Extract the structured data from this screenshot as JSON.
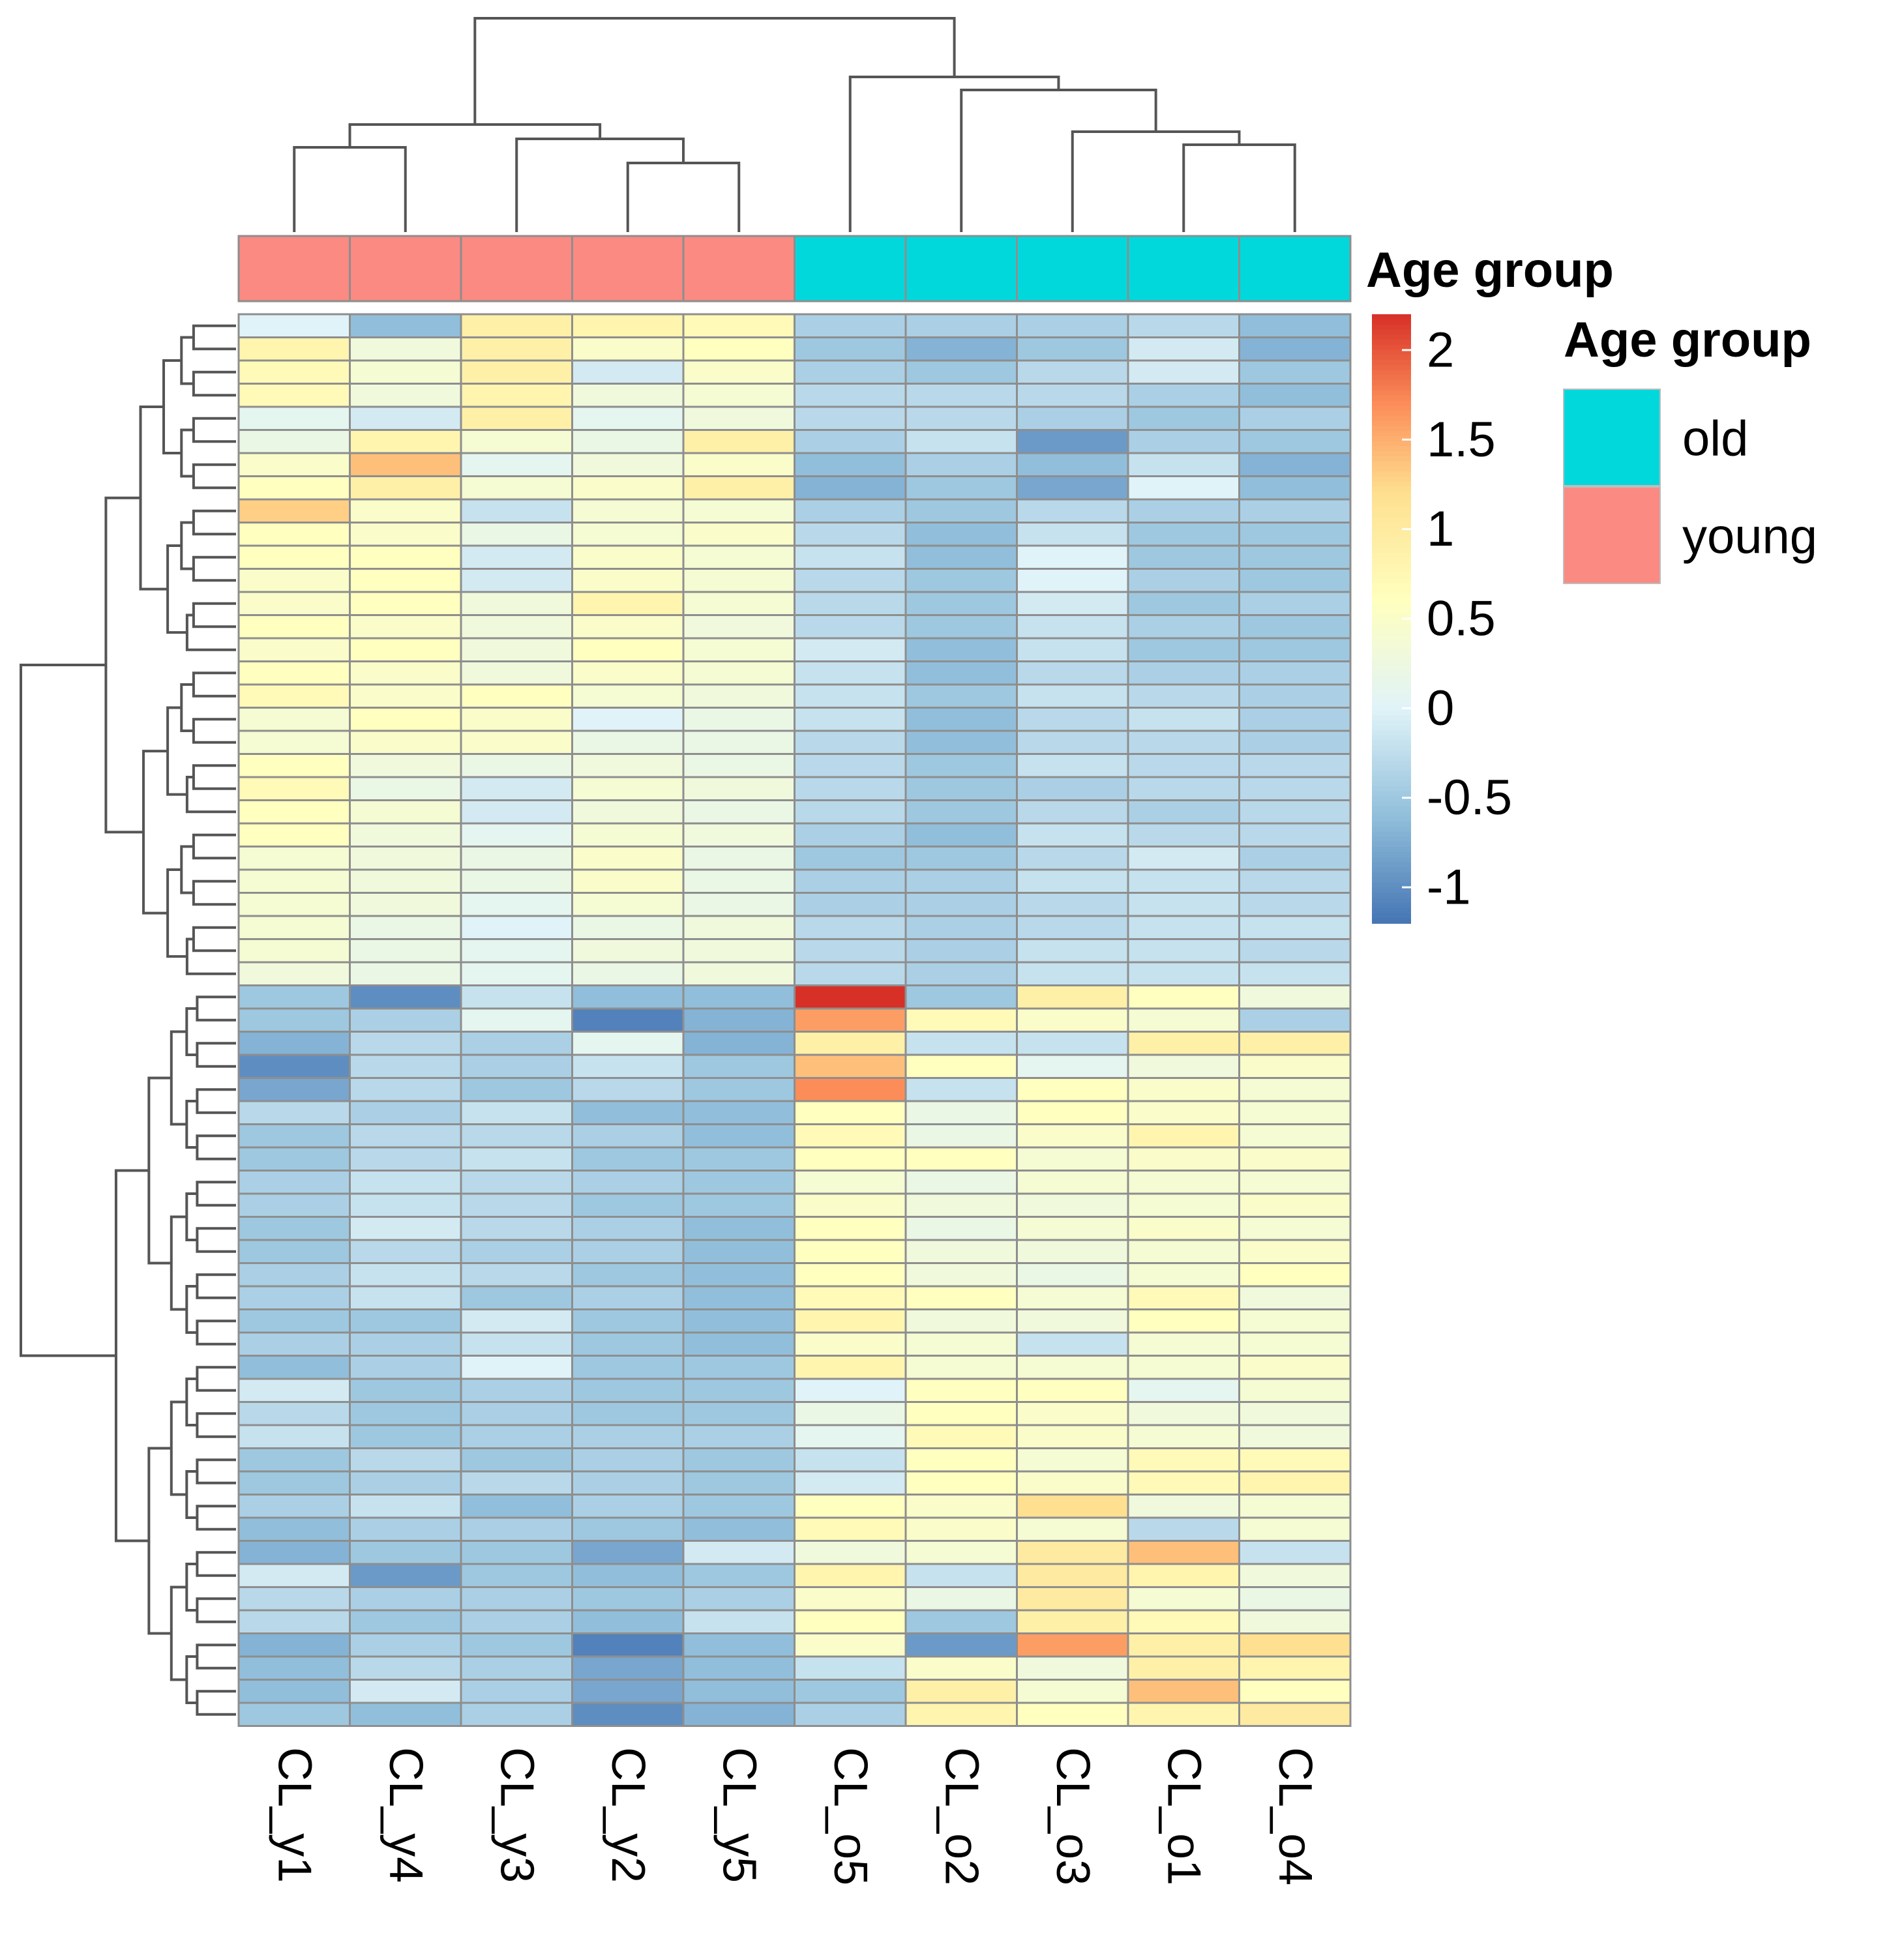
{
  "chart_data": {
    "type": "heatmap",
    "title": "",
    "columns": [
      "CL_y1",
      "CL_y4",
      "CL_y3",
      "CL_y2",
      "CL_y5",
      "CL_o5",
      "CL_o2",
      "CL_o3",
      "CL_o1",
      "CL_o4"
    ],
    "column_groups": [
      "young",
      "young",
      "young",
      "young",
      "young",
      "old",
      "old",
      "old",
      "old",
      "old"
    ],
    "annotation": {
      "title": "Age group",
      "levels": [
        {
          "name": "old",
          "color": "#00d8dc"
        },
        {
          "name": "young",
          "color": "#fa8a82"
        }
      ]
    },
    "legend": {
      "colorbar_ticks": [
        "2",
        "1.5",
        "1",
        "0.5",
        "0",
        "-0.5",
        "-1"
      ],
      "colorbar_range": [
        -1.2,
        2.2
      ],
      "annotation_title": "Age group"
    },
    "colorscale": [
      {
        "value": -1.2,
        "color": "#4575b4"
      },
      {
        "value": -0.6,
        "color": "#91bfdb"
      },
      {
        "value": 0.0,
        "color": "#e0f3f8"
      },
      {
        "value": 0.6,
        "color": "#ffffbf"
      },
      {
        "value": 1.2,
        "color": "#fee090"
      },
      {
        "value": 1.7,
        "color": "#fc8d59"
      },
      {
        "value": 2.2,
        "color": "#d73027"
      }
    ],
    "values": [
      [
        0.0,
        -0.6,
        0.9,
        0.8,
        0.7,
        -0.4,
        -0.4,
        -0.4,
        -0.3,
        -0.6
      ],
      [
        0.8,
        0.3,
        0.9,
        0.5,
        0.6,
        -0.5,
        -0.7,
        -0.5,
        -0.1,
        -0.7
      ],
      [
        0.7,
        0.4,
        0.9,
        -0.1,
        0.5,
        -0.4,
        -0.5,
        -0.3,
        -0.1,
        -0.5
      ],
      [
        0.7,
        0.3,
        0.8,
        0.3,
        0.4,
        -0.3,
        -0.3,
        -0.3,
        -0.4,
        -0.6
      ],
      [
        0.1,
        -0.1,
        0.9,
        0.1,
        0.3,
        -0.3,
        -0.3,
        -0.4,
        -0.5,
        -0.4
      ],
      [
        0.2,
        0.8,
        0.4,
        0.2,
        0.9,
        -0.4,
        -0.2,
        -0.9,
        -0.4,
        -0.5
      ],
      [
        0.5,
        1.4,
        0.1,
        0.3,
        0.5,
        -0.6,
        -0.4,
        -0.6,
        -0.2,
        -0.7
      ],
      [
        0.6,
        0.9,
        0.4,
        0.5,
        0.9,
        -0.7,
        -0.5,
        -0.8,
        0.0,
        -0.6
      ],
      [
        1.3,
        0.5,
        -0.2,
        0.4,
        0.4,
        -0.4,
        -0.5,
        -0.3,
        -0.4,
        -0.4
      ],
      [
        0.6,
        0.5,
        0.2,
        0.4,
        0.5,
        -0.3,
        -0.6,
        -0.2,
        -0.5,
        -0.5
      ],
      [
        0.6,
        0.6,
        -0.1,
        0.5,
        0.4,
        -0.2,
        -0.6,
        0.0,
        -0.5,
        -0.5
      ],
      [
        0.5,
        0.6,
        -0.1,
        0.5,
        0.4,
        -0.3,
        -0.5,
        0.0,
        -0.4,
        -0.5
      ],
      [
        0.5,
        0.6,
        0.3,
        0.8,
        0.4,
        -0.3,
        -0.5,
        -0.1,
        -0.5,
        -0.4
      ],
      [
        0.6,
        0.5,
        0.3,
        0.5,
        0.3,
        -0.3,
        -0.5,
        -0.2,
        -0.4,
        -0.5
      ],
      [
        0.5,
        0.6,
        0.3,
        0.6,
        0.4,
        -0.1,
        -0.6,
        -0.2,
        -0.5,
        -0.5
      ],
      [
        0.6,
        0.5,
        0.3,
        0.5,
        0.4,
        -0.2,
        -0.6,
        -0.3,
        -0.4,
        -0.4
      ],
      [
        0.7,
        0.5,
        0.6,
        0.4,
        0.3,
        -0.2,
        -0.5,
        -0.2,
        -0.3,
        -0.4
      ],
      [
        0.4,
        0.6,
        0.5,
        0.0,
        0.2,
        -0.2,
        -0.6,
        -0.3,
        -0.2,
        -0.4
      ],
      [
        0.4,
        0.5,
        0.5,
        0.2,
        0.2,
        -0.3,
        -0.6,
        -0.3,
        -0.3,
        -0.4
      ],
      [
        0.6,
        0.3,
        0.2,
        0.3,
        0.2,
        -0.3,
        -0.5,
        -0.2,
        -0.3,
        -0.3
      ],
      [
        0.7,
        0.2,
        -0.1,
        0.4,
        0.3,
        -0.3,
        -0.5,
        -0.4,
        -0.3,
        -0.3
      ],
      [
        0.6,
        0.4,
        -0.1,
        0.3,
        0.2,
        -0.3,
        -0.5,
        -0.3,
        -0.4,
        -0.3
      ],
      [
        0.6,
        0.3,
        0.1,
        0.4,
        0.3,
        -0.4,
        -0.6,
        -0.2,
        -0.3,
        -0.3
      ],
      [
        0.4,
        0.3,
        0.2,
        0.5,
        0.2,
        -0.5,
        -0.5,
        -0.3,
        -0.1,
        -0.4
      ],
      [
        0.4,
        0.3,
        0.2,
        0.5,
        0.2,
        -0.4,
        -0.4,
        -0.2,
        -0.2,
        -0.3
      ],
      [
        0.4,
        0.3,
        0.1,
        0.4,
        0.2,
        -0.4,
        -0.4,
        -0.3,
        -0.2,
        -0.3
      ],
      [
        0.4,
        0.2,
        0.0,
        0.2,
        0.3,
        -0.3,
        -0.4,
        -0.3,
        -0.2,
        -0.2
      ],
      [
        0.4,
        0.2,
        0.1,
        0.3,
        0.3,
        -0.3,
        -0.4,
        -0.2,
        -0.2,
        -0.3
      ],
      [
        0.3,
        0.2,
        0.1,
        0.2,
        0.3,
        -0.3,
        -0.4,
        -0.2,
        -0.2,
        -0.2
      ],
      [
        -0.5,
        -1.0,
        -0.2,
        -0.6,
        -0.6,
        2.2,
        -0.5,
        0.9,
        0.6,
        0.3
      ],
      [
        -0.5,
        -0.4,
        0.1,
        -1.1,
        -0.7,
        1.6,
        0.7,
        0.5,
        0.4,
        -0.4
      ],
      [
        -0.7,
        -0.3,
        -0.4,
        0.1,
        -0.7,
        0.9,
        -0.2,
        -0.2,
        0.9,
        0.9
      ],
      [
        -1.0,
        -0.3,
        -0.4,
        -0.2,
        -0.5,
        1.4,
        0.6,
        0.1,
        0.3,
        0.5
      ],
      [
        -0.8,
        -0.3,
        -0.5,
        -0.3,
        -0.5,
        1.7,
        -0.2,
        0.6,
        0.5,
        0.4
      ],
      [
        -0.3,
        -0.4,
        -0.2,
        -0.6,
        -0.6,
        0.6,
        0.2,
        0.6,
        0.5,
        0.4
      ],
      [
        -0.5,
        -0.3,
        -0.3,
        -0.4,
        -0.6,
        0.7,
        0.2,
        0.5,
        0.8,
        0.4
      ],
      [
        -0.5,
        -0.3,
        -0.2,
        -0.5,
        -0.5,
        0.6,
        0.6,
        0.4,
        0.5,
        0.5
      ],
      [
        -0.4,
        -0.2,
        -0.3,
        -0.4,
        -0.5,
        0.4,
        0.2,
        0.4,
        0.4,
        0.4
      ],
      [
        -0.4,
        -0.2,
        -0.3,
        -0.5,
        -0.5,
        0.5,
        0.3,
        0.3,
        0.4,
        0.5
      ],
      [
        -0.5,
        -0.1,
        -0.3,
        -0.4,
        -0.6,
        0.6,
        0.2,
        0.4,
        0.5,
        0.4
      ],
      [
        -0.5,
        -0.3,
        -0.4,
        -0.4,
        -0.6,
        0.6,
        0.3,
        0.3,
        0.4,
        0.5
      ],
      [
        -0.4,
        -0.2,
        -0.3,
        -0.5,
        -0.6,
        0.6,
        0.3,
        0.2,
        0.4,
        0.6
      ],
      [
        -0.4,
        -0.2,
        -0.5,
        -0.4,
        -0.6,
        0.7,
        0.6,
        0.4,
        0.7,
        0.3
      ],
      [
        -0.5,
        -0.5,
        -0.1,
        -0.5,
        -0.6,
        0.8,
        0.3,
        0.3,
        0.6,
        0.4
      ],
      [
        -0.4,
        -0.4,
        -0.2,
        -0.5,
        -0.6,
        0.5,
        0.4,
        -0.2,
        0.4,
        0.4
      ],
      [
        -0.6,
        -0.4,
        0.0,
        -0.5,
        -0.5,
        0.8,
        0.4,
        0.4,
        0.4,
        0.5
      ],
      [
        -0.1,
        -0.5,
        -0.4,
        -0.5,
        -0.5,
        0.0,
        0.6,
        0.6,
        0.1,
        0.4
      ],
      [
        -0.3,
        -0.5,
        -0.4,
        -0.5,
        -0.5,
        0.2,
        0.6,
        0.5,
        0.3,
        0.3
      ],
      [
        -0.2,
        -0.5,
        -0.4,
        -0.4,
        -0.4,
        0.1,
        0.7,
        0.5,
        0.4,
        0.3
      ],
      [
        -0.5,
        -0.3,
        -0.5,
        -0.4,
        -0.5,
        -0.2,
        0.6,
        0.4,
        0.7,
        0.7
      ],
      [
        -0.5,
        -0.4,
        -0.3,
        -0.4,
        -0.5,
        -0.1,
        0.6,
        0.5,
        0.7,
        0.8
      ],
      [
        -0.4,
        -0.2,
        -0.6,
        -0.4,
        -0.5,
        0.6,
        0.5,
        1.2,
        0.3,
        0.4
      ],
      [
        -0.6,
        -0.4,
        -0.4,
        -0.5,
        -0.6,
        0.7,
        0.5,
        0.4,
        -0.3,
        0.4
      ],
      [
        -0.7,
        -0.5,
        -0.5,
        -0.8,
        -0.1,
        0.3,
        0.4,
        1.0,
        1.4,
        -0.2
      ],
      [
        -0.1,
        -0.9,
        -0.5,
        -0.6,
        -0.5,
        0.8,
        -0.2,
        1.0,
        0.8,
        0.3
      ],
      [
        -0.3,
        -0.4,
        -0.4,
        -0.5,
        -0.4,
        0.5,
        0.2,
        1.0,
        0.4,
        0.2
      ],
      [
        -0.3,
        -0.5,
        -0.4,
        -0.6,
        -0.2,
        0.6,
        -0.5,
        0.9,
        0.7,
        0.3
      ],
      [
        -0.7,
        -0.4,
        -0.5,
        -1.1,
        -0.6,
        0.5,
        -0.9,
        1.6,
        0.9,
        1.2
      ],
      [
        -0.6,
        -0.3,
        -0.4,
        -0.8,
        -0.6,
        -0.2,
        0.5,
        0.3,
        0.9,
        0.8
      ],
      [
        -0.6,
        -0.1,
        -0.4,
        -0.8,
        -0.6,
        -0.5,
        0.9,
        0.4,
        1.4,
        0.6
      ],
      [
        -0.5,
        -0.6,
        -0.4,
        -1.0,
        -0.7,
        -0.4,
        0.8,
        0.6,
        0.8,
        1.0
      ]
    ],
    "row_dendrogram": {
      "leaf_order": [
        0,
        1,
        2,
        3,
        4,
        5,
        6,
        7,
        8,
        9,
        10,
        11,
        12,
        13,
        14,
        15,
        16,
        17,
        18,
        19,
        20,
        21,
        22,
        23,
        24,
        25,
        26,
        27,
        28,
        29,
        30,
        31,
        32,
        33,
        34,
        35,
        36,
        37,
        38,
        39,
        40,
        41,
        42,
        43,
        44,
        45,
        46,
        47,
        48,
        49,
        50,
        51,
        52,
        53,
        54,
        55,
        56,
        57,
        58,
        59,
        60
      ],
      "split_after_row": 28
    },
    "column_dendrogram": {
      "leaf_order": [
        "CL_y1",
        "CL_y4",
        "CL_y3",
        "CL_y2",
        "CL_y5",
        "CL_o5",
        "CL_o2",
        "CL_o3",
        "CL_o1",
        "CL_o4"
      ]
    }
  }
}
